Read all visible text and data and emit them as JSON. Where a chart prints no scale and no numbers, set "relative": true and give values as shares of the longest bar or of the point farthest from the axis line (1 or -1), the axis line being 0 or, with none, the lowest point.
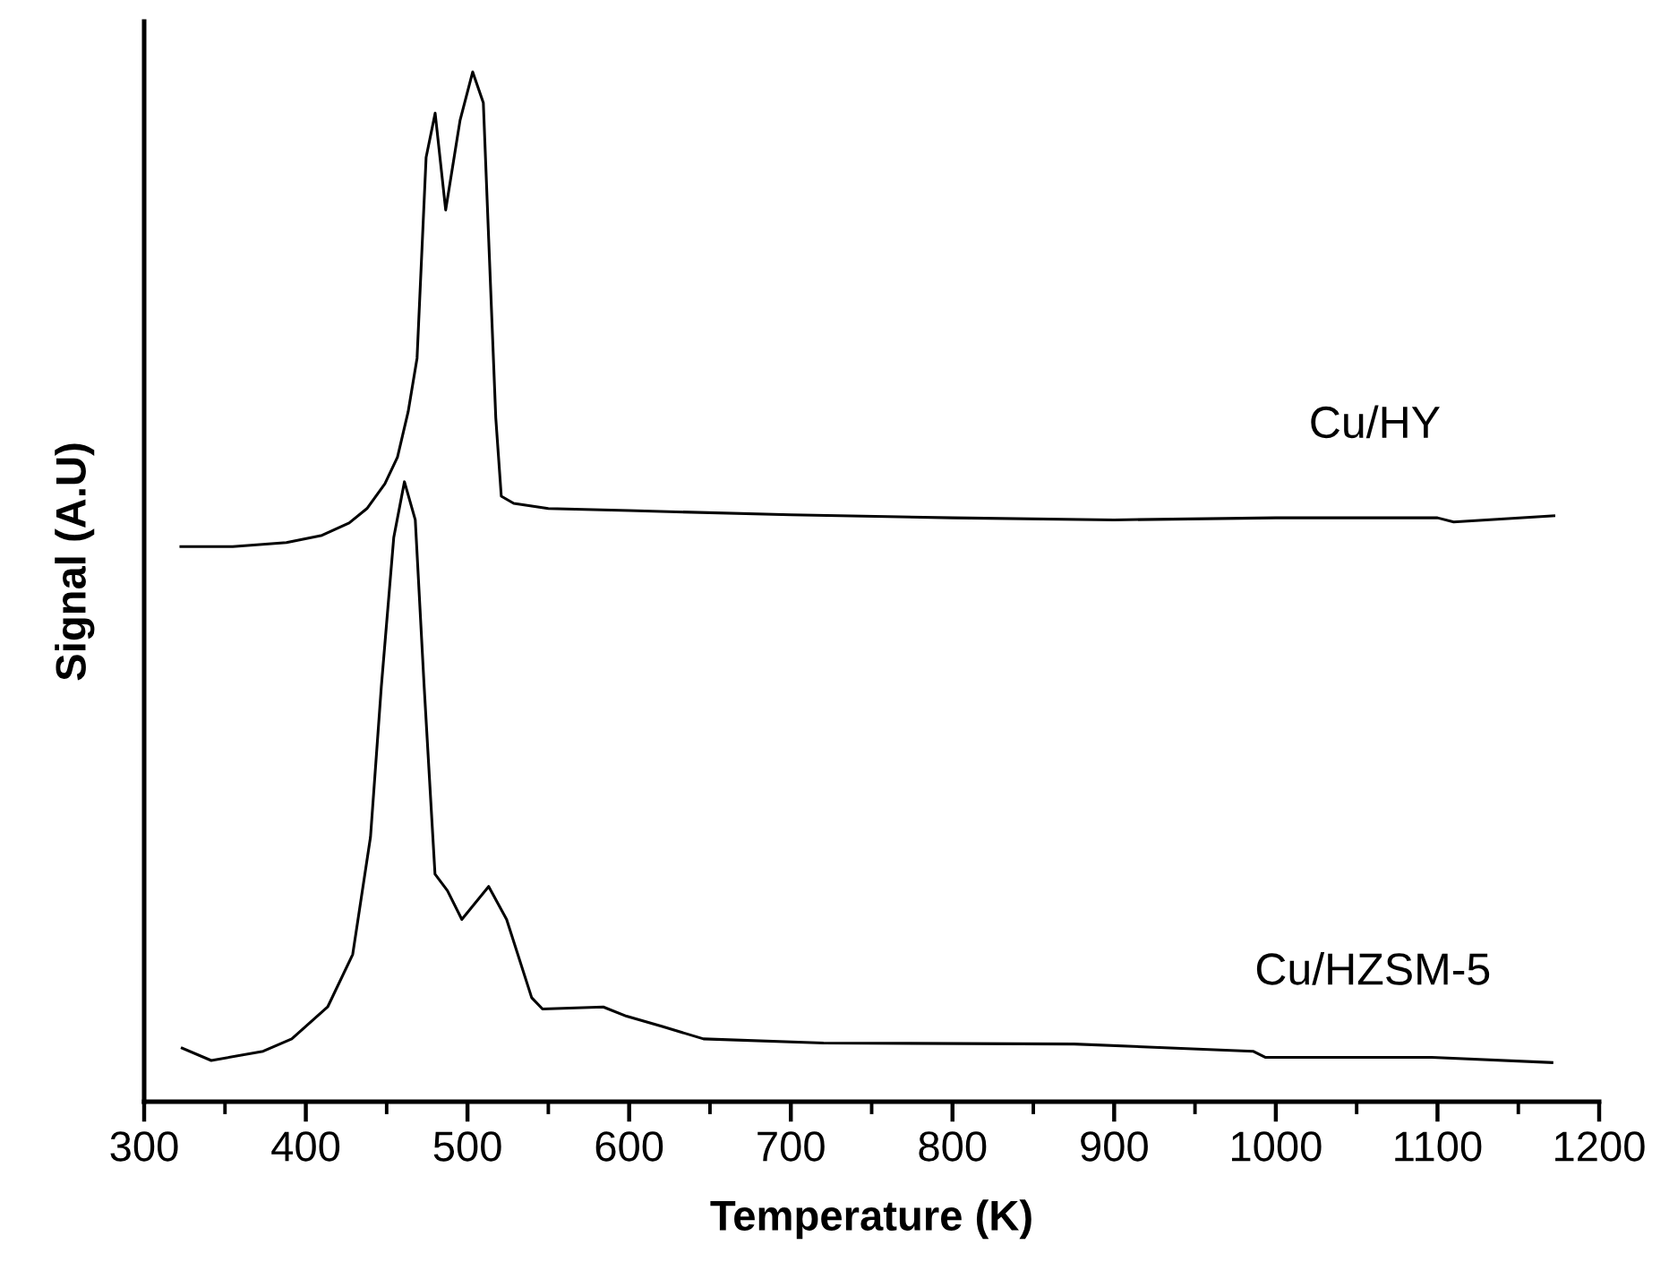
{
  "chart_data": {
    "type": "line",
    "xlabel": "Temperature (K)",
    "ylabel": "Signal (A.U)",
    "relative": true,
    "xlim": [
      300,
      1200
    ],
    "xticks": [
      300,
      400,
      500,
      600,
      700,
      800,
      900,
      1000,
      1100,
      1200
    ],
    "tick_labels": "x",
    "grid": false,
    "legend": false,
    "series": [
      {
        "name": "Cu/HY",
        "color": "#000000",
        "x": [
          322.7,
          354.8,
          388,
          410,
          426.8,
          437.8,
          448.9,
          456.7,
          463.3,
          468.8,
          474.4,
          480,
          486.5,
          495.4,
          503.2,
          509.8,
          513.1,
          517.5,
          520.9,
          528.6,
          550,
          600,
          700,
          800,
          900,
          1000,
          1100,
          1110,
          1172
        ],
        "values": [
          0.539,
          0.539,
          0.543,
          0.55,
          0.562,
          0.576,
          0.6,
          0.626,
          0.67,
          0.722,
          0.917,
          0.96,
          0.866,
          0.953,
          1.0,
          0.97,
          0.838,
          0.664,
          0.588,
          0.581,
          0.576,
          0.574,
          0.57,
          0.567,
          0.565,
          0.567,
          0.567,
          0.563,
          0.569
        ]
      },
      {
        "name": "Cu/HZSM-5",
        "color": "#000000",
        "x": [
          323.5,
          341.5,
          373.6,
          391.3,
          413.5,
          429,
          440,
          446.7,
          454.4,
          461,
          467.7,
          473.2,
          479.9,
          487.6,
          496.5,
          513.1,
          524.2,
          539.7,
          546.4,
          584,
          598.4,
          620.5,
          646,
          720.2,
          875.2,
          985.9,
          993.7,
          1096.6,
          1170.8
        ],
        "values": [
          0.052,
          0.04,
          0.049,
          0.061,
          0.092,
          0.143,
          0.257,
          0.403,
          0.548,
          0.602,
          0.565,
          0.403,
          0.221,
          0.205,
          0.177,
          0.209,
          0.177,
          0.101,
          0.09,
          0.092,
          0.083,
          0.073,
          0.061,
          0.057,
          0.056,
          0.049,
          0.043,
          0.043,
          0.038
        ]
      }
    ]
  }
}
